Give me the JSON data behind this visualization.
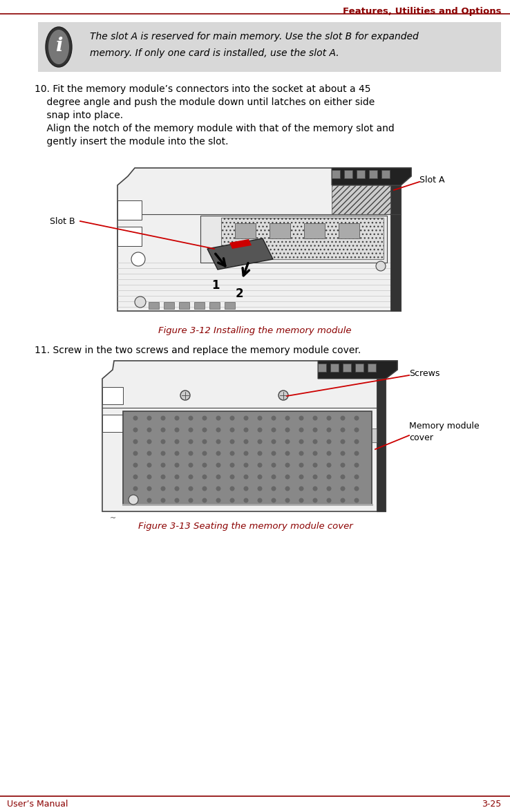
{
  "page_bg": "#ffffff",
  "header_text": "Features, Utilities and Options",
  "header_color": "#8b0000",
  "header_line_color": "#8b0000",
  "footer_left": "User’s Manual",
  "footer_right": "3-25",
  "footer_color": "#8b0000",
  "footer_line_color": "#8b0000",
  "note_bg": "#d8d8d8",
  "note_text_line1": "The slot A is reserved for main memory. Use the slot B for expanded",
  "note_text_line2": "memory. If only one card is installed, use the slot A.",
  "step10_lines": [
    "10. Fit the memory module’s connectors into the socket at about a 45",
    "    degree angle and push the module down until latches on either side",
    "    snap into place.",
    "    Align the notch of the memory module with that of the memory slot and",
    "    gently insert the module into the slot."
  ],
  "fig12_caption": "Figure 3-12 Installing the memory module",
  "fig12_caption_color": "#8b0000",
  "label_slot_a": "Slot A",
  "label_slot_b": "Slot B",
  "step11_text": "11. Screw in the two screws and replace the memory module cover.",
  "fig13_caption": "Figure 3-13 Seating the memory module cover",
  "fig13_caption_color": "#8b0000",
  "label_screws": "Screws",
  "label_mem_cover": "Memory module\ncover",
  "arrow_color": "#cc0000",
  "diagram_line_color": "#444444",
  "diagram_fill": "#f5f5f5"
}
